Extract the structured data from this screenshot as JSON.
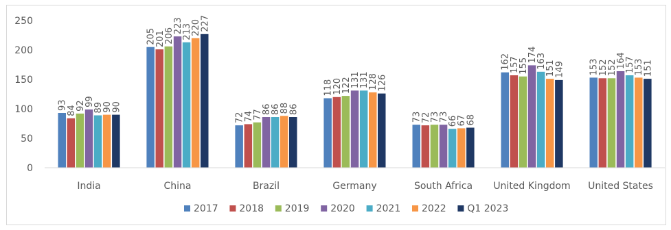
{
  "chart_data": {
    "type": "bar",
    "categories": [
      "India",
      "China",
      "Brazil",
      "Germany",
      "South Africa",
      "United Kingdom",
      "United States"
    ],
    "series": [
      {
        "name": "2017",
        "color": "#4f81bd",
        "values": [
          93,
          205,
          72,
          118,
          73,
          162,
          153
        ]
      },
      {
        "name": "2018",
        "color": "#c0504d",
        "values": [
          84,
          201,
          74,
          120,
          72,
          157,
          152
        ]
      },
      {
        "name": "2019",
        "color": "#9bbb59",
        "values": [
          92,
          206,
          77,
          122,
          73,
          155,
          152
        ]
      },
      {
        "name": "2020",
        "color": "#8064a2",
        "values": [
          99,
          223,
          86,
          131,
          73,
          174,
          164
        ]
      },
      {
        "name": "2021",
        "color": "#4bacc6",
        "values": [
          89,
          213,
          86,
          131,
          66,
          163,
          157
        ]
      },
      {
        "name": "2022",
        "color": "#f79646",
        "values": [
          90,
          220,
          88,
          128,
          67,
          151,
          153
        ]
      },
      {
        "name": "Q1 2023",
        "color": "#1f3864",
        "values": [
          90,
          227,
          86,
          126,
          68,
          149,
          151
        ]
      }
    ],
    "y_ticks": [
      0,
      50,
      100,
      150,
      200,
      250
    ],
    "ylim": [
      0,
      250
    ],
    "title": "",
    "xlabel": "",
    "ylabel": "",
    "grid": false,
    "legend_position": "bottom",
    "data_labels": true,
    "data_label_rotation": "vertical"
  }
}
